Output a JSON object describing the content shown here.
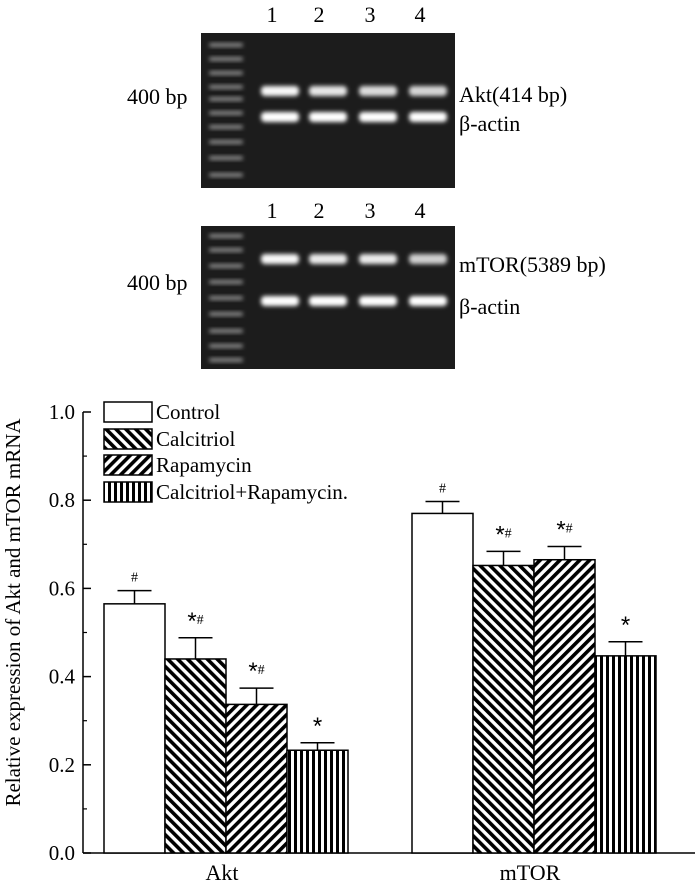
{
  "gels": [
    {
      "lanes": [
        "1",
        "2",
        "3",
        "4"
      ],
      "size_marker": "400 bp",
      "bands": [
        "Akt(414 bp)",
        "β-actin"
      ],
      "band_intensity": [
        [
          0.95,
          0.82,
          0.75,
          0.7
        ],
        [
          1.0,
          1.0,
          1.0,
          1.0
        ]
      ]
    },
    {
      "lanes": [
        "1",
        "2",
        "3",
        "4"
      ],
      "size_marker": "400 bp",
      "bands": [
        "mTOR(5389 bp)",
        "β-actin"
      ],
      "band_intensity": [
        [
          0.95,
          0.85,
          0.85,
          0.65
        ],
        [
          1.0,
          1.0,
          1.0,
          1.0
        ]
      ]
    }
  ],
  "chart_data": {
    "type": "bar",
    "categories": [
      "Akt",
      "mTOR"
    ],
    "series": [
      {
        "name": "Control",
        "values": [
          0.565,
          0.77
        ],
        "errors": [
          0.03,
          0.027
        ],
        "marks": [
          "#",
          "#"
        ],
        "fill": "white"
      },
      {
        "name": "Calcitriol",
        "values": [
          0.44,
          0.652
        ],
        "errors": [
          0.048,
          0.032
        ],
        "marks": [
          "*#",
          "*#"
        ],
        "fill": "backslash"
      },
      {
        "name": "Rapamycin",
        "values": [
          0.337,
          0.665
        ],
        "errors": [
          0.037,
          0.03
        ],
        "marks": [
          "*#",
          "*#"
        ],
        "fill": "slash"
      },
      {
        "name": "Calcitriol+Rapamycin.",
        "values": [
          0.233,
          0.447
        ],
        "errors": [
          0.017,
          0.032
        ],
        "marks": [
          "*",
          "*"
        ],
        "fill": "vertical"
      }
    ],
    "ylabel": "Relative expression of Akt and mTOR mRNA",
    "xlabel": "",
    "ylim": [
      0,
      1.0
    ],
    "yticks": [
      "0.0",
      "0.2",
      "0.4",
      "0.6",
      "0.8",
      "1.0"
    ],
    "legend_position": "top-left",
    "grid": false
  }
}
